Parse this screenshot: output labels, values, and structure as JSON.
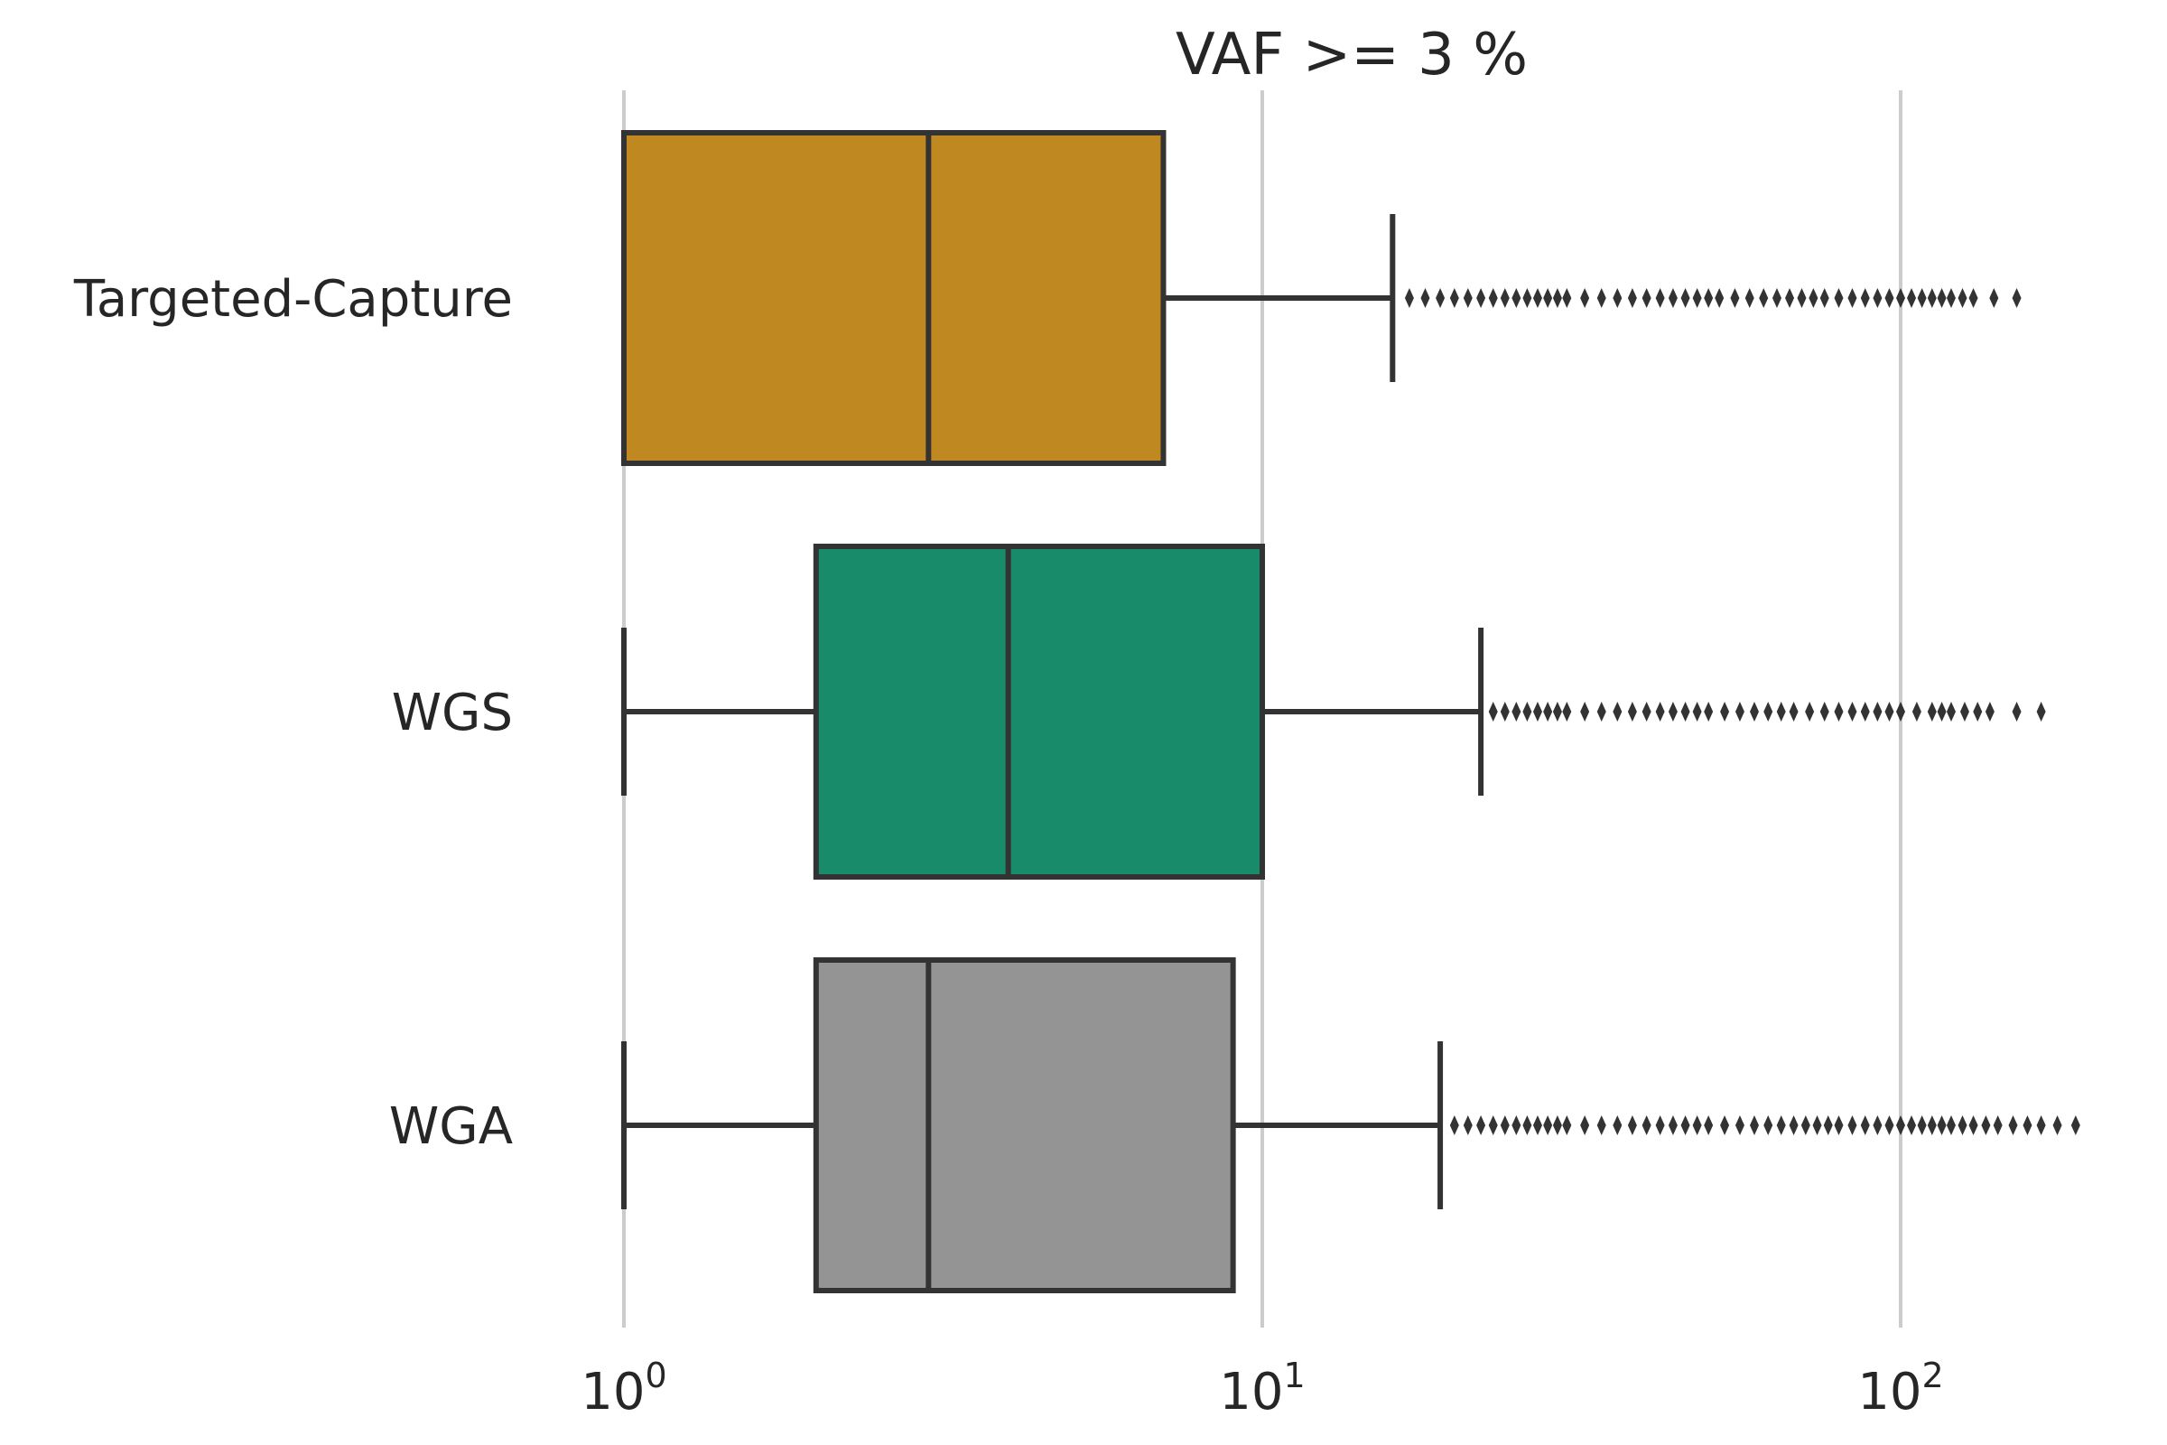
{
  "chart_data": {
    "type": "box",
    "orientation": "horizontal",
    "title": "VAF >= 3 %",
    "xlabel": "",
    "ylabel": "",
    "x_scale": "log",
    "xlim": [
      0.8,
      220
    ],
    "grid": "x-major",
    "xticks": [
      {
        "value": 1,
        "base": "10",
        "exp": "0"
      },
      {
        "value": 10,
        "base": "10",
        "exp": "1"
      },
      {
        "value": 100,
        "base": "10",
        "exp": "2"
      }
    ],
    "categories": [
      "Targeted-Capture",
      "WGS",
      "WGA"
    ],
    "series": [
      {
        "category": "Targeted-Capture",
        "color": "#c08820",
        "whisker_low": 1,
        "q1": 1,
        "median": 3,
        "q3": 7,
        "whisker_high": 16,
        "outliers": [
          17,
          18,
          19,
          20,
          21,
          22,
          23,
          24,
          25,
          26,
          27,
          28,
          29,
          30,
          32,
          34,
          36,
          38,
          40,
          42,
          44,
          46,
          48,
          50,
          52,
          55,
          58,
          61,
          64,
          67,
          70,
          73,
          76,
          80,
          84,
          88,
          92,
          96,
          100,
          104,
          108,
          112,
          116,
          120,
          125,
          130,
          140,
          152
        ]
      },
      {
        "category": "WGS",
        "color": "#178b6a",
        "whisker_low": 1,
        "q1": 2,
        "median": 4,
        "q3": 10,
        "whisker_high": 22,
        "outliers": [
          23,
          24,
          25,
          26,
          27,
          28,
          29,
          30,
          32,
          34,
          36,
          38,
          40,
          42,
          44,
          46,
          48,
          50,
          53,
          56,
          59,
          62,
          65,
          68,
          72,
          76,
          80,
          84,
          88,
          92,
          96,
          100,
          106,
          112,
          116,
          120,
          126,
          132,
          138,
          152,
          166
        ]
      },
      {
        "category": "WGA",
        "color": "#949494",
        "whisker_low": 1,
        "q1": 2,
        "median": 3,
        "q3": 9,
        "whisker_high": 19,
        "outliers": [
          20,
          21,
          22,
          23,
          24,
          25,
          26,
          27,
          28,
          29,
          30,
          32,
          34,
          36,
          38,
          40,
          42,
          44,
          46,
          48,
          50,
          53,
          56,
          59,
          62,
          65,
          68,
          71,
          74,
          77,
          80,
          84,
          88,
          92,
          96,
          100,
          104,
          108,
          112,
          116,
          120,
          125,
          130,
          136,
          142,
          150,
          158,
          166,
          176,
          188
        ]
      }
    ]
  }
}
